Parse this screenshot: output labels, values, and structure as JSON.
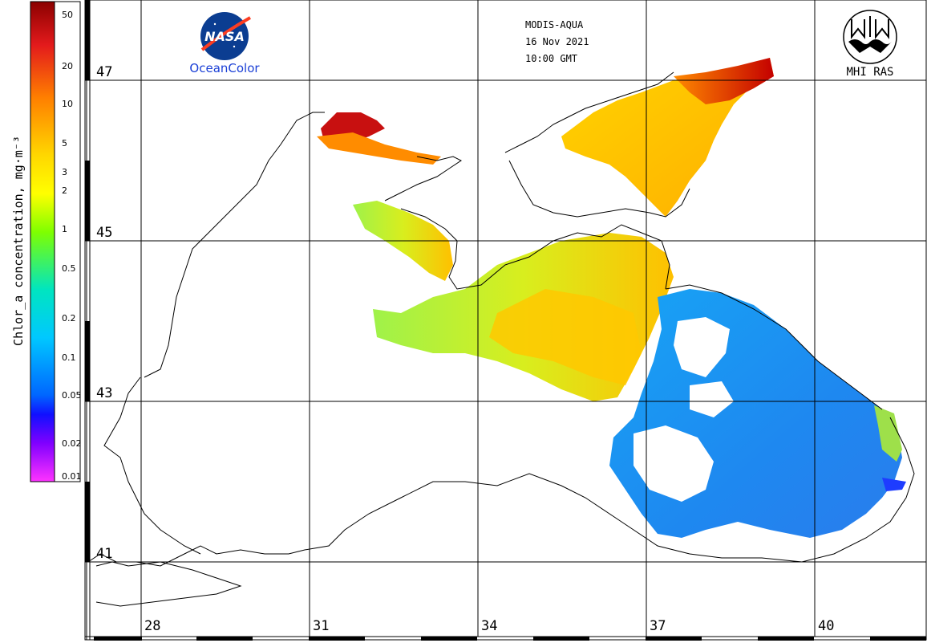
{
  "header": {
    "sensor": "MODIS-AQUA",
    "date": "16 Nov 2021",
    "time": "10:00 GMT"
  },
  "logos": {
    "nasa_text": "NASA",
    "oceancolor_text": "OceanColor",
    "mhi_text": "MHI RAS"
  },
  "colorbar": {
    "label": "Chlor_a concentration, mg·m⁻³",
    "ticks": [
      "50",
      "20",
      "10",
      "5",
      "3",
      "2",
      "1",
      "0.5",
      "0.2",
      "0.1",
      "0.05",
      "0.02",
      "0.01"
    ],
    "colors": [
      "#8b0000",
      "#e31a1c",
      "#ff7f00",
      "#ffff00",
      "#7fff00",
      "#00e5c0",
      "#00c8ff",
      "#0066ff",
      "#1010ff",
      "#8000ff",
      "#cc00ff",
      "#ff33ff"
    ]
  },
  "latitudes": [
    "47",
    "45",
    "43",
    "41"
  ],
  "longitudes": [
    "28",
    "31",
    "34",
    "37",
    "40"
  ]
}
